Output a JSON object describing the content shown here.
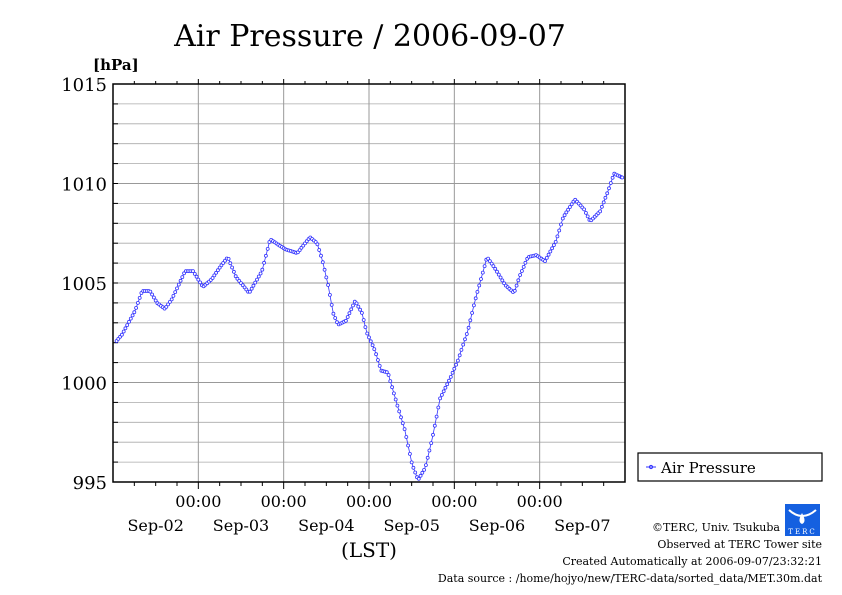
{
  "chart_data": {
    "type": "line",
    "title": "Air Pressure / 2006-09-07",
    "ylabel": "[hPa]",
    "xlabel": "(LST)",
    "ylim": [
      995,
      1015
    ],
    "yticks": [
      "995",
      "1000",
      "1005",
      "1010",
      "1015"
    ],
    "ytick_values": [
      995,
      1000,
      1005,
      1010,
      1015
    ],
    "x_range_hours": [
      0,
      144
    ],
    "x_start": "Sep-02 00:00",
    "x_time_ticks": [
      "00:00",
      "00:00",
      "00:00",
      "00:00",
      "00:00"
    ],
    "x_day_labels": [
      "Sep-02",
      "Sep-03",
      "Sep-04",
      "Sep-05",
      "Sep-06",
      "Sep-07"
    ],
    "grid": true,
    "legend_position": "right",
    "series": [
      {
        "name": "Air Pressure",
        "color": "#3333ff",
        "hours": [
          0.6,
          2.5,
          6.2,
          8.2,
          10.4,
          12.4,
          14.6,
          16.6,
          20.3,
          22.5,
          25.3,
          27.8,
          30.1,
          32.3,
          34.6,
          38.3,
          41.9,
          44.2,
          48.4,
          51.8,
          55.4,
          57.4,
          58.8,
          60.5,
          61.9,
          63.3,
          65.5,
          68.1,
          70.0,
          71.4,
          73.7,
          75.4,
          77.3,
          79.9,
          82.1,
          84.1,
          85.8,
          87.8,
          89.7,
          92.0,
          94.8,
          97.0,
          99.8,
          101.8,
          105.2,
          107.2,
          110.3,
          112.8,
          114.5,
          116.7,
          119.0,
          121.5,
          124.6,
          126.6,
          129.9,
          132.5,
          134.2,
          137.0,
          139.2,
          140.9,
          143.2
        ],
        "values": [
          1002.0,
          1002.4,
          1003.6,
          1004.6,
          1004.6,
          1004.0,
          1003.7,
          1004.2,
          1005.6,
          1005.6,
          1004.8,
          1005.2,
          1005.8,
          1006.3,
          1005.3,
          1004.5,
          1005.6,
          1007.2,
          1006.7,
          1006.5,
          1007.3,
          1007.0,
          1006.2,
          1004.9,
          1003.5,
          1002.9,
          1003.1,
          1004.1,
          1003.5,
          1002.5,
          1001.6,
          1000.6,
          1000.5,
          998.9,
          997.6,
          995.9,
          995.1,
          995.7,
          997.1,
          999.2,
          1000.2,
          1001.1,
          1002.6,
          1004.1,
          1006.3,
          1005.8,
          1004.9,
          1004.5,
          1005.4,
          1006.3,
          1006.4,
          1006.1,
          1007.1,
          1008.3,
          1009.2,
          1008.7,
          1008.1,
          1008.6,
          1009.6,
          1010.5,
          1010.3
        ]
      }
    ]
  },
  "footer": {
    "copyright": "©TERC, Univ. Tsukuba",
    "observed": "Observed at TERC Tower site",
    "created": "Created Automatically at 2006-09-07/23:32:21",
    "source": "Data source : /home/hojyo/new/TERC-data/sorted_data/MET.30m.dat",
    "logo_text": "TERC"
  }
}
